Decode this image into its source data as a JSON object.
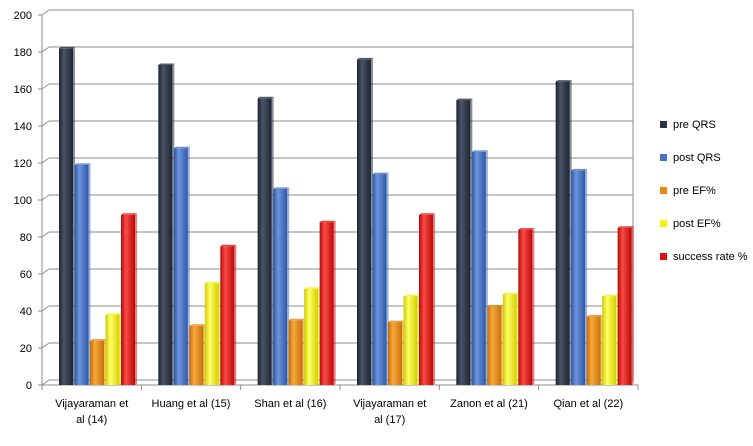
{
  "chart_data": {
    "type": "bar",
    "categories": [
      [
        "Vijayaraman et",
        "al (14)"
      ],
      [
        "Huang et al (15)"
      ],
      [
        "Shan et al (16)"
      ],
      [
        "Vijayaraman et",
        "al (17)"
      ],
      [
        "Zanon et al (21)"
      ],
      [
        "Qian et al (22)"
      ]
    ],
    "series": [
      {
        "name": "pre QRS",
        "color": "#2b3343",
        "values": [
          182,
          173,
          155,
          176,
          154,
          164
        ]
      },
      {
        "name": "post QRS",
        "color": "#4673c4",
        "values": [
          119,
          128,
          106,
          114,
          126,
          116
        ]
      },
      {
        "name": "pre EF%",
        "color": "#e9880f",
        "values": [
          24,
          32,
          35,
          34,
          42.5,
          37
        ]
      },
      {
        "name": "post EF%",
        "color": "#f4f20c",
        "values": [
          38,
          55,
          52,
          48,
          49,
          48
        ]
      },
      {
        "name": "success rate %",
        "color": "#e0120e",
        "values": [
          92,
          75,
          88,
          92,
          84,
          85
        ]
      }
    ],
    "yticks": [
      0,
      20,
      40,
      60,
      80,
      100,
      120,
      140,
      160,
      180,
      200
    ],
    "ylim": [
      0,
      200
    ],
    "grid": true,
    "legend": "right",
    "title": "",
    "xlabel": "",
    "ylabel": ""
  }
}
